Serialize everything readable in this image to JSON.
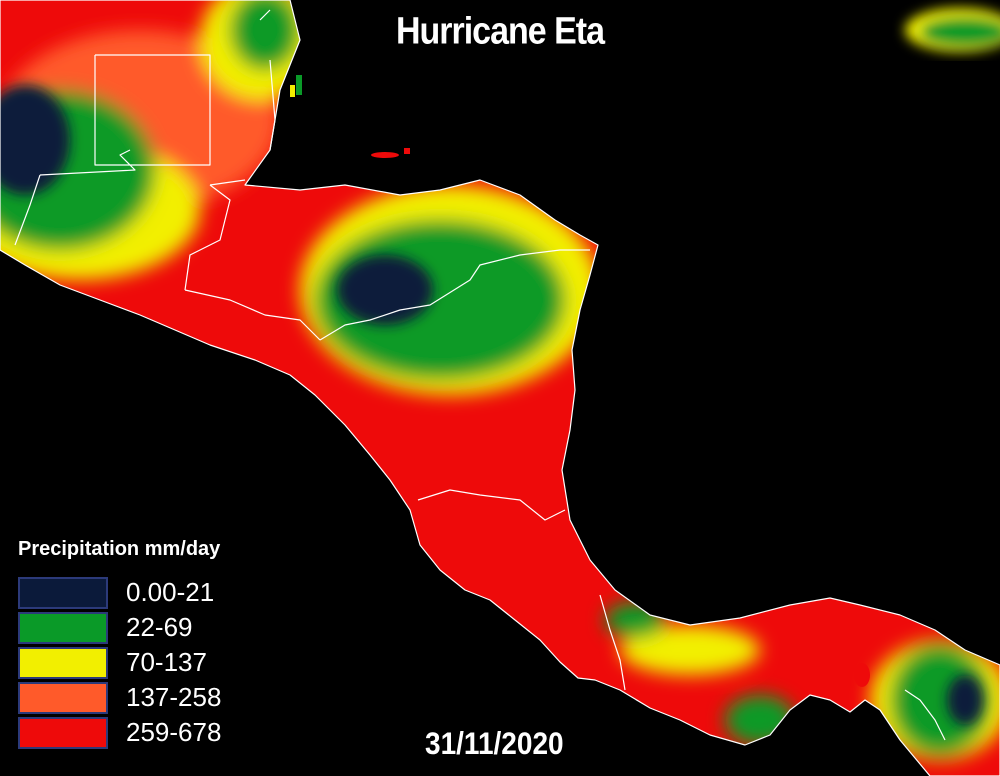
{
  "title": "Hurricane Eta",
  "date": "31/11/2020",
  "legend": {
    "title": "Precipitation mm/day",
    "items": [
      {
        "label": "0.00-21",
        "color": "#0b1a3a"
      },
      {
        "label": "22-69",
        "color": "#0a9a28"
      },
      {
        "label": "70-137",
        "color": "#f2ef00"
      },
      {
        "label": "137-258",
        "color": "#ff5a2a"
      },
      {
        "label": "259-678",
        "color": "#ee0a0a"
      }
    ]
  },
  "colors": {
    "ocean": "#000000",
    "borders": "#ffffff"
  }
}
